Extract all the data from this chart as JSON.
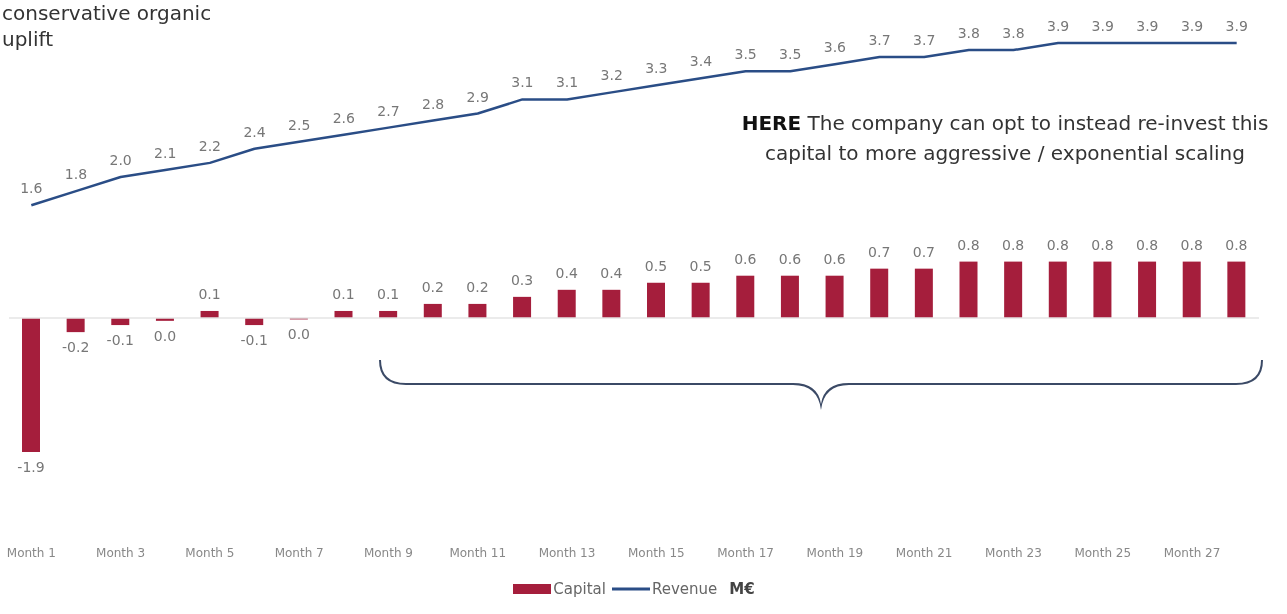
{
  "chart_data": {
    "type": "bar",
    "categories": [
      "Month 1",
      null,
      "Month 3",
      null,
      "Month 5",
      null,
      "Month 7",
      null,
      "Month 9",
      null,
      "Month 11",
      null,
      "Month 13",
      null,
      "Month 15",
      null,
      "Month 17",
      null,
      "Month 19",
      null,
      "Month 21",
      null,
      "Month 23",
      null,
      "Month 25",
      null,
      "Month 27",
      null
    ],
    "series": [
      {
        "name": "Capital",
        "color": "#a51e3c",
        "values": [
          -1.9,
          -0.2,
          -0.1,
          -0.04,
          0.1,
          -0.1,
          -0.02,
          0.1,
          0.1,
          0.2,
          0.2,
          0.3,
          0.4,
          0.4,
          0.5,
          0.5,
          0.6,
          0.6,
          0.6,
          0.7,
          0.7,
          0.8,
          0.8,
          0.8,
          0.8,
          0.8,
          0.8,
          0.8
        ],
        "value_labels": [
          "-1.9",
          "-0.2",
          "-0.1",
          "0.0",
          "0.1",
          "-0.1",
          "0.0",
          "0.1",
          "0.1",
          "0.2",
          "0.2",
          "0.3",
          "0.4",
          "0.4",
          "0.5",
          "0.5",
          "0.6",
          "0.6",
          "0.6",
          "0.7",
          "0.7",
          "0.8",
          "0.8",
          "0.8",
          "0.8",
          "0.8",
          "0.8",
          "0.8"
        ]
      },
      {
        "name": "Revenue",
        "type": "line",
        "color": "#2a4d86",
        "values": [
          1.6,
          1.8,
          2.0,
          2.1,
          2.2,
          2.4,
          2.5,
          2.6,
          2.7,
          2.8,
          2.9,
          3.1,
          3.1,
          3.2,
          3.3,
          3.4,
          3.5,
          3.5,
          3.6,
          3.7,
          3.7,
          3.8,
          3.8,
          3.9,
          3.9,
          3.9,
          3.9,
          3.9
        ],
        "value_labels": [
          "1.6",
          "1.8",
          "2.0",
          "2.1",
          "2.2",
          "2.4",
          "2.5",
          "2.6",
          "2.7",
          "2.8",
          "2.9",
          "3.1",
          "3.1",
          "3.2",
          "3.3",
          "3.4",
          "3.5",
          "3.5",
          "3.6",
          "3.7",
          "3.7",
          "3.8",
          "3.8",
          "3.9",
          "3.9",
          "3.9",
          "3.9",
          "3.9"
        ]
      }
    ],
    "tick_labels": "x",
    "legend": "bottom",
    "ref_lines": [
      {
        "axis": "y",
        "value": 0,
        "color": "#e4e4e4"
      }
    ],
    "annotations": [
      "conservative organic uplift",
      "HERE The company can opt to instead re-invest this capital to more aggressive / exponential scaling",
      "M€"
    ]
  }
}
